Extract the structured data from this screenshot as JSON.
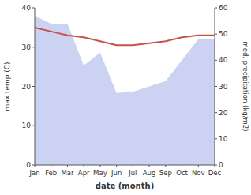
{
  "chart_data": {
    "type": "line",
    "categories": [
      "Jan",
      "Feb",
      "Mar",
      "Apr",
      "May",
      "Jun",
      "Jul",
      "Aug",
      "Sep",
      "Oct",
      "Nov",
      "Dec"
    ],
    "xlabel": "date (month)",
    "ylabel": "max temp (C)",
    "y2label": "med. precipitation (kg/m2)",
    "ylim": [
      0,
      40
    ],
    "yticks": [
      0,
      10,
      20,
      30,
      40
    ],
    "y2lim": [
      0,
      60
    ],
    "y2ticks": [
      0,
      10,
      20,
      30,
      40,
      50,
      60
    ],
    "grid": false,
    "series": [
      {
        "type": "area",
        "axis": "y2",
        "color": "#aab4e8",
        "values": [
          57.0,
          54.0,
          54.0,
          38.0,
          43.0,
          27.5,
          28.0,
          30.0,
          32.0,
          40.0,
          48.0,
          48.0
        ]
      },
      {
        "type": "line",
        "color": "#c8524a",
        "values": [
          35.0,
          34.0,
          33.0,
          32.5,
          31.5,
          30.5,
          30.5,
          31.0,
          31.5,
          32.5,
          33.0,
          33.0
        ]
      }
    ]
  }
}
